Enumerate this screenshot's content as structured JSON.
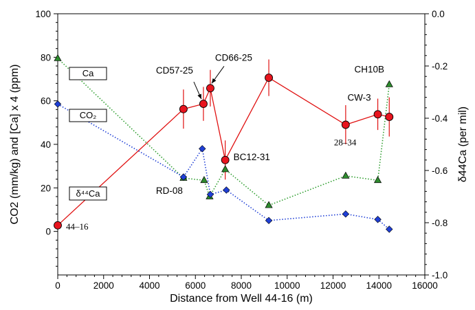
{
  "chart_data": {
    "type": "scatter",
    "xlabel": "Distance from Well 44-16 (m)",
    "ylabel_left": "CO2 (mm/kg) and [Ca] x 4 (ppm)",
    "ylabel_right": "δ44Ca (per mil)",
    "xlim": [
      0,
      16000
    ],
    "ylim_left": [
      -20,
      100
    ],
    "ylim_right": [
      -1.0,
      0.0
    ],
    "x_ticks": [
      "0",
      "2000",
      "4000",
      "6000",
      "8000",
      "10000",
      "12000",
      "14000",
      "16000"
    ],
    "y_left_ticks": [
      "0",
      "20",
      "40",
      "60",
      "80",
      "100"
    ],
    "y_right_ticks": [
      "-1.0",
      "-0.8",
      "-0.6",
      "-0.4",
      "-0.2",
      "0.0"
    ],
    "grid": false,
    "series": [
      {
        "name": "Ca",
        "axis": "left",
        "marker": "triangle",
        "color": "#2e8b2e",
        "line_color": "#2e9e2e",
        "line_style": "dotted",
        "points": [
          [
            0,
            79.5
          ],
          [
            5480,
            24.5
          ],
          [
            6380,
            23.5
          ],
          [
            6620,
            16
          ],
          [
            7300,
            28.5
          ],
          [
            9200,
            12
          ],
          [
            12550,
            25.5
          ],
          [
            13950,
            23.5
          ],
          [
            14450,
            67.5
          ]
        ]
      },
      {
        "name": "CO2",
        "axis": "left",
        "marker": "diamond",
        "color": "#1f3fd6",
        "line_color": "#1f3fd6",
        "line_style": "dotted",
        "points": [
          [
            0,
            58.5
          ],
          [
            5480,
            25
          ],
          [
            6300,
            38
          ],
          [
            6650,
            17
          ],
          [
            7350,
            19
          ],
          [
            9200,
            5
          ],
          [
            12550,
            8
          ],
          [
            13950,
            5.5
          ],
          [
            14450,
            1
          ]
        ]
      },
      {
        "name": "δ44Ca",
        "axis": "right",
        "marker": "circle",
        "color": "#e8141e",
        "line_color": "#e01010",
        "line_style": "solid",
        "points": [
          [
            0,
            -0.81
          ],
          [
            5480,
            -0.365
          ],
          [
            6350,
            -0.345
          ],
          [
            6650,
            -0.285
          ],
          [
            7300,
            -0.56
          ],
          [
            9200,
            -0.245
          ],
          [
            12550,
            -0.425
          ],
          [
            13950,
            -0.385
          ],
          [
            14450,
            -0.395
          ]
        ],
        "errors": [
          0,
          0.075,
          0.065,
          0.07,
          0.075,
          0.07,
          0.075,
          0.06,
          0.075
        ]
      }
    ],
    "legend": [
      {
        "label": "Ca",
        "series": "Ca"
      },
      {
        "label": "CO₂",
        "series": "CO2"
      },
      {
        "label": "δ⁴⁴Ca",
        "series": "δ44Ca"
      }
    ],
    "annotations": [
      {
        "text": "CD57-25",
        "x": 6350,
        "y": -0.345,
        "axis": "right",
        "arrow": true
      },
      {
        "text": "CD66-25",
        "x": 6650,
        "y": -0.285,
        "axis": "right",
        "arrow": true
      },
      {
        "text": "BC12-31",
        "x": 7300,
        "y": -0.56,
        "axis": "right"
      },
      {
        "text": "RD-08",
        "x": 5480,
        "y": -0.64,
        "axis": "right"
      },
      {
        "text": "CW-3",
        "x": 13950,
        "y": -0.385,
        "axis": "right"
      },
      {
        "text": "CH10B",
        "x": 14450,
        "y": -0.27,
        "axis": "right"
      },
      {
        "text": "28–34",
        "x": 12550,
        "y": -0.47,
        "axis": "right",
        "font": "serif"
      },
      {
        "text": "44–16",
        "x": 0,
        "y": -0.81,
        "axis": "right",
        "font": "serif"
      }
    ]
  }
}
